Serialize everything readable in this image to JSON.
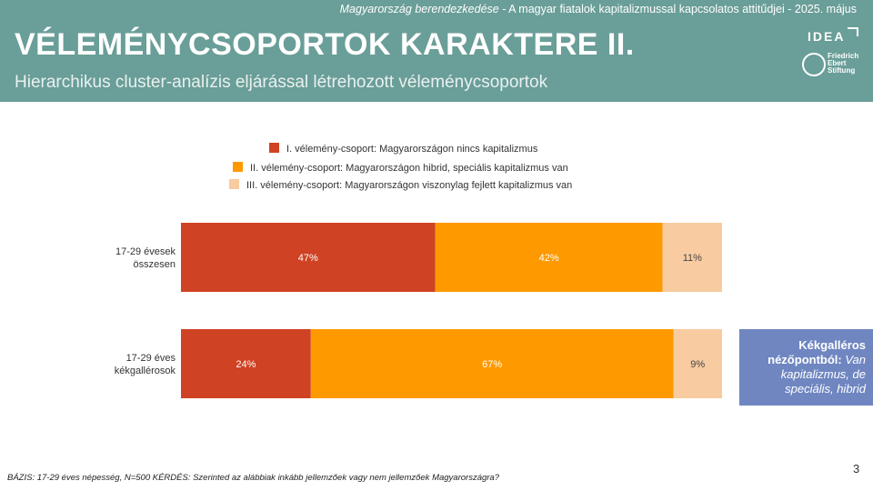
{
  "header": {
    "topline_italic": "Magyarország berendezkedése",
    "topline_rest": " - A magyar fiatalok kapitalizmussal kapcsolatos attitűdjei  - 2025. május",
    "title": "VÉLEMÉNYCSOPORTOK KARAKTERE II.",
    "subtitle": "Hierarchikus cluster-analízis eljárással létrehozott véleménycsoportok",
    "logo_idea": "IDEA",
    "logo_fes": [
      "Friedrich",
      "Ebert",
      "Stiftung"
    ]
  },
  "chart_data": {
    "type": "bar",
    "orientation": "horizontal",
    "stacked": true,
    "percent_stacked": true,
    "categories": [
      [
        "17-29 évesek",
        "összesen"
      ],
      [
        "17-29 éves",
        "kékgallérosok"
      ]
    ],
    "series": [
      {
        "name": "I. vélemény-csoport: Magyarországon nincs kapitalizmus",
        "color": "#cf4223",
        "values": [
          47,
          24
        ]
      },
      {
        "name": "II. vélemény-csoport: Magyarországon hibrid, speciális kapitalizmus van",
        "color": "#fe9900",
        "values": [
          42,
          67
        ]
      },
      {
        "name": "III. vélemény-csoport: Magyarországon viszonylag fejlett kapitalizmus van",
        "color": "#f8cba0",
        "values": [
          11,
          9
        ]
      }
    ],
    "data_labels": [
      [
        "47%",
        "42%",
        "11%"
      ],
      [
        "24%",
        "67%",
        "9%"
      ]
    ],
    "legend_position": "top",
    "xlim": [
      0,
      100
    ],
    "title": "",
    "xlabel": "",
    "ylabel": ""
  },
  "callout": {
    "bold": "Kékgalléros nézőpontból:",
    "italic": " Van kapitalizmus, de speciális, hibrid"
  },
  "footer": {
    "text": "BÁZIS: 17-29 éves népesség, N=500  KÉRDÉS: Szerinted az alábbiak inkább jellemzőek vagy nem jellemzőek Magyarországra?"
  },
  "page_number": "3"
}
